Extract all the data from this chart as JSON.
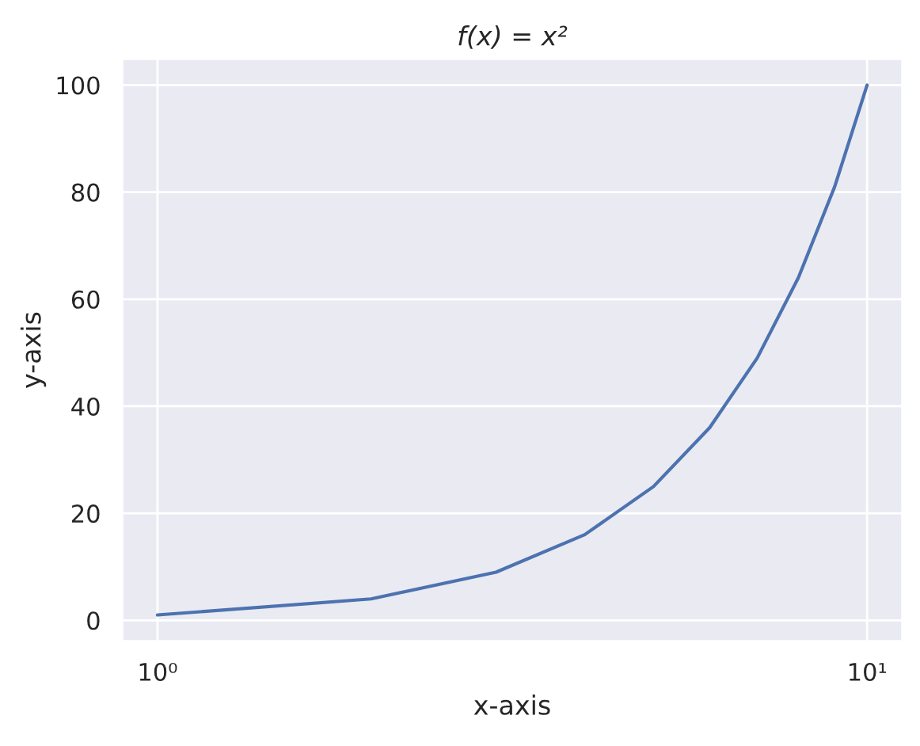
{
  "chart_data": {
    "type": "line",
    "title": "f(x) = x²",
    "xlabel": "x-axis",
    "ylabel": "y-axis",
    "x": [
      1,
      2,
      3,
      4,
      5,
      6,
      7,
      8,
      9,
      10
    ],
    "values": [
      1,
      4,
      9,
      16,
      25,
      36,
      49,
      64,
      81,
      100
    ],
    "color": "#4c72b0",
    "log": "x",
    "grid": true,
    "line_style": "solid",
    "xlim": [
      0.891,
      11.22
    ],
    "xticks": [
      {
        "value": 1,
        "label": "10⁰"
      },
      {
        "value": 10,
        "label": "10¹"
      }
    ],
    "ylim": [
      -3.95,
      104.95
    ],
    "yticks": [
      0,
      20,
      40,
      60,
      80,
      100
    ]
  }
}
